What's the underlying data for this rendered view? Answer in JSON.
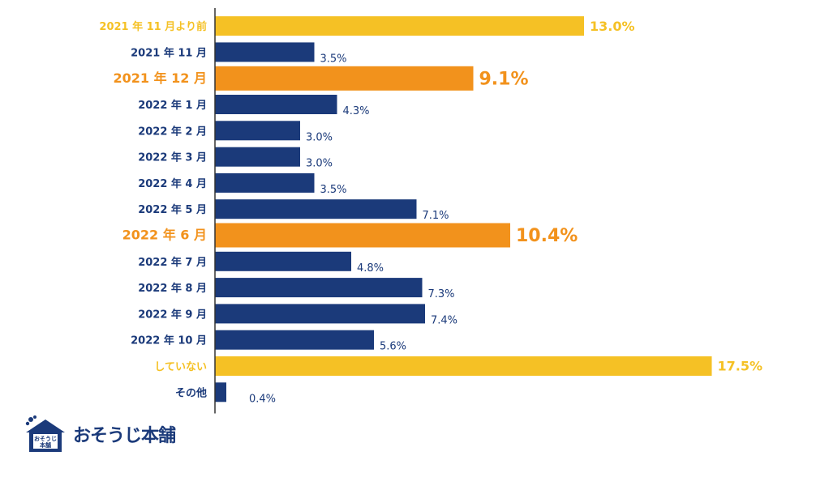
{
  "colors": {
    "navy": "#1b3a7a",
    "orange": "#f2921c",
    "yellow": "#f5c125",
    "axis": "#333333"
  },
  "chart_data": {
    "type": "bar",
    "orientation": "horizontal",
    "xlim": [
      0,
      18
    ],
    "grid": false,
    "categories": [
      "2021 年 11 月より前",
      "2021 年 11 月",
      "2021 年 12 月",
      "2022 年 1 月",
      "2022 年 2 月",
      "2022 年 3 月",
      "2022 年 4 月",
      "2022 年 5 月",
      "2022 年 6 月",
      "2022 年 7 月",
      "2022 年 8 月",
      "2022 年 9 月",
      "2022 年 10 月",
      "していない",
      "その他"
    ],
    "values": [
      13.0,
      3.5,
      9.1,
      4.3,
      3.0,
      3.0,
      3.5,
      7.1,
      10.4,
      4.8,
      7.3,
      7.4,
      5.6,
      17.5,
      0.4
    ],
    "value_labels": [
      "13.0%",
      "3.5%",
      "9.1%",
      "4.3%",
      "3.0%",
      "3.0%",
      "3.5%",
      "7.1%",
      "10.4%",
      "4.8%",
      "7.3%",
      "7.4%",
      "5.6%",
      "17.5%",
      "0.4%"
    ],
    "styles": [
      "yellow",
      "navy",
      "orange",
      "navy",
      "navy",
      "navy",
      "navy",
      "navy",
      "orange",
      "navy",
      "navy",
      "navy",
      "navy",
      "yellow",
      "navy"
    ]
  },
  "logo": {
    "text": "おそうじ本舗",
    "house_text_top": "おそうじ",
    "house_text_bottom": "本舗"
  }
}
